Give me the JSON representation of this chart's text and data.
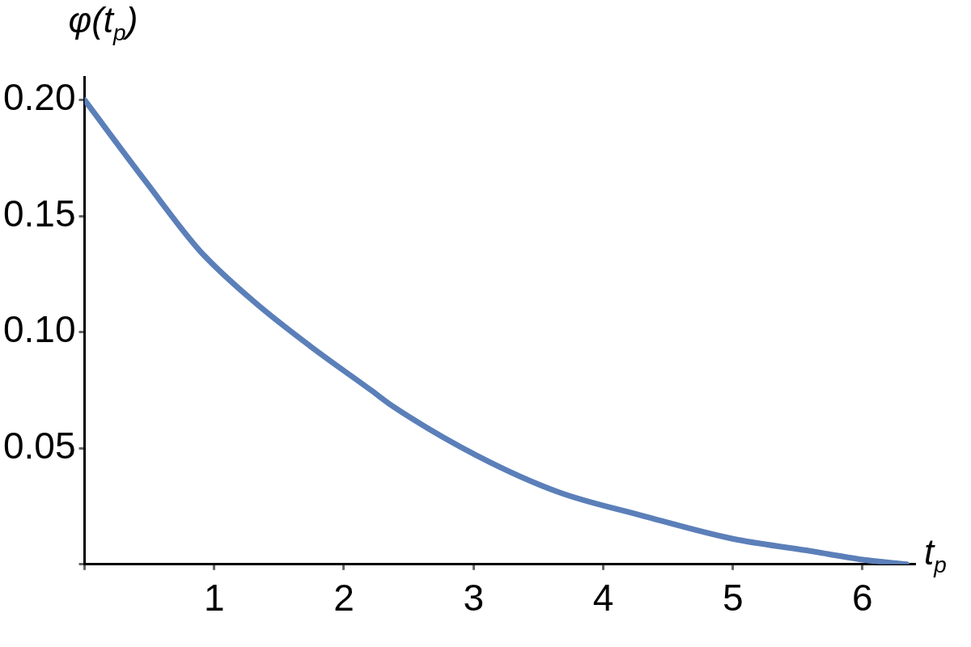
{
  "chart_data": {
    "type": "line",
    "xlabel": "t$_{p}$",
    "ylabel": "φ(t$_{p}$)",
    "series": [
      {
        "color": "#5b7fb9",
        "x": [
          0,
          0.47,
          0.89,
          1.31,
          1.74,
          2.21,
          2.38,
          3.02,
          3.66,
          4.3,
          5.0,
          5.57,
          6.0,
          6.34
        ],
        "values": [
          0.2,
          0.165,
          0.135,
          0.113,
          0.094,
          0.075,
          0.068,
          0.047,
          0.031,
          0.021,
          0.011,
          0.006,
          0.002,
          0
        ]
      }
    ],
    "xlim": [
      0,
      6.4
    ],
    "ylim": [
      0,
      0.21
    ],
    "xticks": [
      {
        "value": 0,
        "label": null
      },
      1,
      2,
      3,
      4,
      5,
      6
    ],
    "yticks": [
      {
        "value": 0,
        "label": null
      },
      0.05,
      {
        "value": 0.1,
        "label": "0.10"
      },
      0.15,
      {
        "value": 0.2,
        "label": "0.20"
      }
    ],
    "grid": false,
    "legend": false,
    "marker": "none",
    "line_style": "solid"
  }
}
